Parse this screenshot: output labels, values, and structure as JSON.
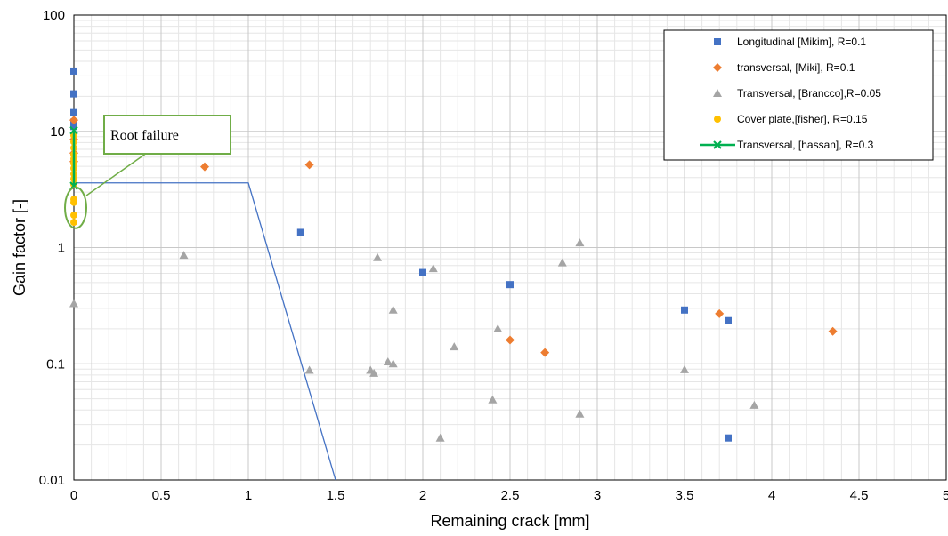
{
  "chart_data": {
    "type": "scatter",
    "xlabel": "Remaining crack [mm]",
    "ylabel": "Gain factor [-]",
    "xlim": [
      0,
      5
    ],
    "ylim": [
      0.01,
      100
    ],
    "yscale": "log",
    "grid": true,
    "legend_position": "top-right",
    "x_ticks": [
      "0",
      "0.5",
      "1",
      "1.5",
      "2",
      "2.5",
      "3",
      "3.5",
      "4",
      "4.5",
      "5"
    ],
    "y_ticks": [
      "0.01",
      "0.1",
      "1",
      "10",
      "100"
    ],
    "annotation": {
      "text": "Root failure"
    },
    "series": [
      {
        "name": "Longitudinal [Mikim], R=0.1",
        "marker": "square",
        "color": "#4472C4",
        "points": [
          [
            0.0,
            33
          ],
          [
            0.0,
            21
          ],
          [
            0.0,
            14.5
          ],
          [
            0.0,
            12
          ],
          [
            0.0,
            11
          ],
          [
            1.3,
            1.35
          ],
          [
            2.0,
            0.61
          ],
          [
            2.5,
            0.48
          ],
          [
            3.5,
            0.29
          ],
          [
            3.75,
            0.235
          ],
          [
            3.75,
            0.023
          ]
        ]
      },
      {
        "name": "transversal, [Miki], R=0.1",
        "marker": "diamond",
        "color": "#ED7D31",
        "points": [
          [
            0.0,
            12.5
          ],
          [
            0.0,
            8.5
          ],
          [
            0.0,
            6.5
          ],
          [
            0.0,
            5.5
          ],
          [
            0.75,
            4.95
          ],
          [
            1.35,
            5.15
          ],
          [
            2.5,
            0.16
          ],
          [
            2.7,
            0.125
          ],
          [
            3.7,
            0.27
          ],
          [
            4.35,
            0.19
          ]
        ]
      },
      {
        "name": "Transversal, [Brancco],R=0.05",
        "marker": "triangle",
        "color": "#A5A5A5",
        "points": [
          [
            0.0,
            0.33
          ],
          [
            0.63,
            0.86
          ],
          [
            1.35,
            0.088
          ],
          [
            1.7,
            0.088
          ],
          [
            1.72,
            0.083
          ],
          [
            1.74,
            0.82
          ],
          [
            1.8,
            0.104
          ],
          [
            1.83,
            0.1
          ],
          [
            1.83,
            0.29
          ],
          [
            2.06,
            0.66
          ],
          [
            2.1,
            0.023
          ],
          [
            2.18,
            0.14
          ],
          [
            2.4,
            0.049
          ],
          [
            2.43,
            0.2
          ],
          [
            2.8,
            0.74
          ],
          [
            2.9,
            0.037
          ],
          [
            2.9,
            1.1
          ],
          [
            3.5,
            0.089
          ],
          [
            3.9,
            0.044
          ]
        ]
      },
      {
        "name": "Cover plate,[fisher], R=0.15",
        "marker": "circle",
        "color": "#FFC000",
        "points": [
          [
            0.0,
            9.2
          ],
          [
            0.0,
            8.1
          ],
          [
            0.0,
            7.2
          ],
          [
            0.0,
            6.3
          ],
          [
            0.0,
            5.8
          ],
          [
            0.0,
            5.3
          ],
          [
            0.0,
            4.8
          ],
          [
            0.0,
            4.3
          ],
          [
            0.0,
            3.9
          ],
          [
            0.0,
            3.5
          ],
          [
            0.0,
            2.6
          ],
          [
            0.0,
            2.45
          ],
          [
            0.0,
            1.9
          ],
          [
            0.0,
            1.65
          ]
        ]
      },
      {
        "name": "Transversal, [hassan], R=0.3",
        "marker": "x-line",
        "color": "#00B050",
        "points": [
          [
            0.0,
            10.2
          ],
          [
            0.0,
            3.4
          ]
        ]
      }
    ],
    "reference_lines": [
      {
        "color": "#4472C4",
        "points": [
          [
            0,
            3.6
          ],
          [
            1.0,
            3.6
          ],
          [
            1.5,
            0.01
          ]
        ]
      }
    ]
  }
}
